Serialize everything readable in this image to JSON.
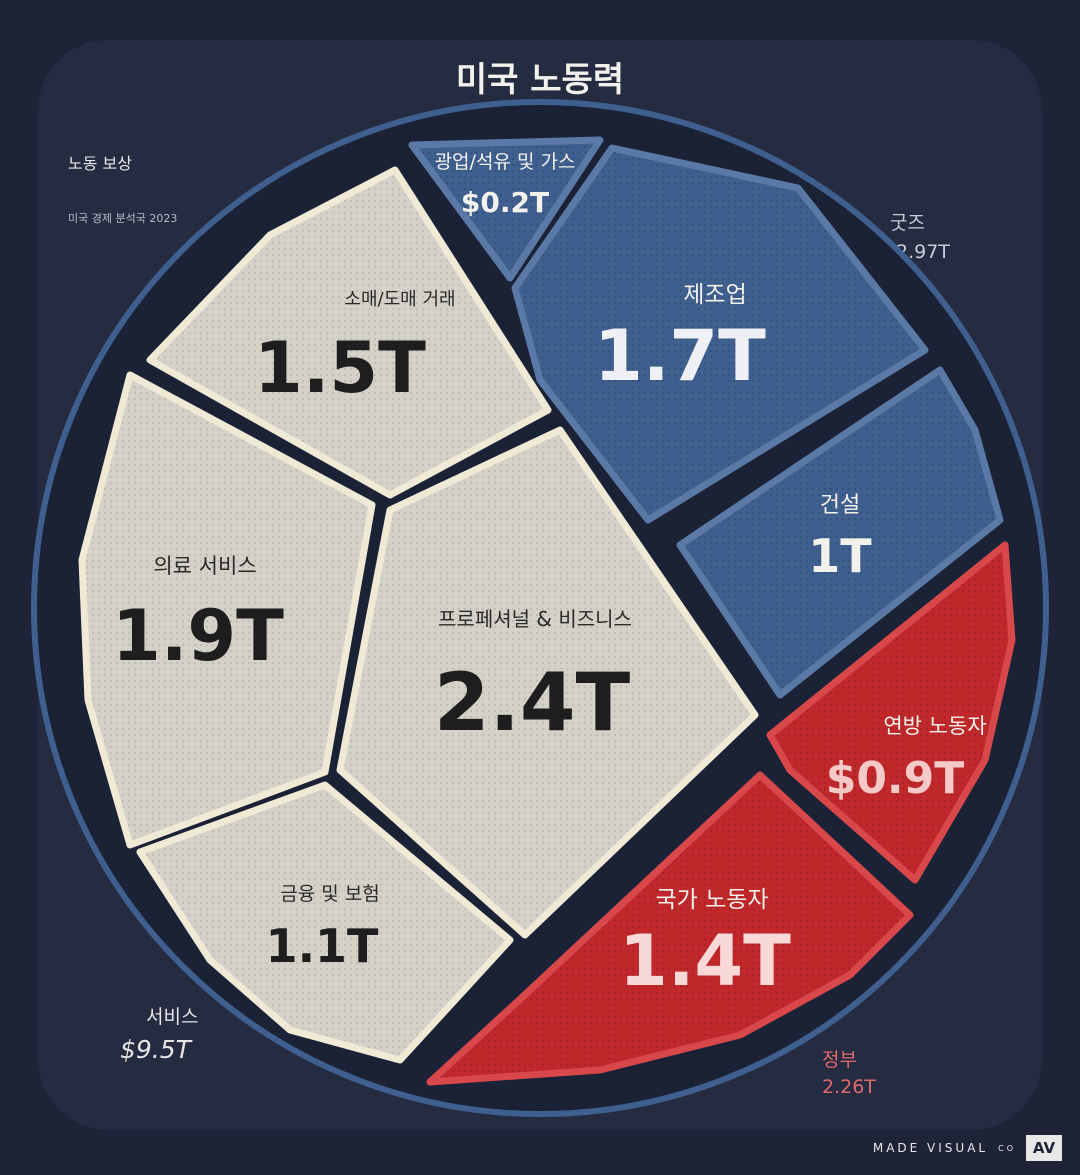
{
  "title": "미국 노동력",
  "subtitle": "노동 보상",
  "source": "미국 경제 분석국 2023",
  "groups": {
    "goods": {
      "label": "굿즈",
      "value": "2.97T"
    },
    "government": {
      "label": "정부",
      "value": "2.26T"
    },
    "services": {
      "label": "서비스",
      "value": "$9.5T"
    }
  },
  "brand": {
    "text": "MADE VISUAL",
    "suffix": "CO",
    "logo": "AV"
  },
  "colors": {
    "background": "#1e2337",
    "goods": "#3f5f8f",
    "government": "#c0282b",
    "services": "#d3d1c8"
  },
  "chart_data": {
    "type": "voronoi-treemap",
    "title": "미국 노동력",
    "unit": "trillion USD",
    "cells": [
      {
        "name": "광업/석유 및 가스",
        "group": "굿즈",
        "value": 0.2,
        "label": "$0.2T"
      },
      {
        "name": "제조업",
        "group": "굿즈",
        "value": 1.7,
        "label": "1.7T"
      },
      {
        "name": "건설",
        "group": "굿즈",
        "value": 1.0,
        "label": "1T"
      },
      {
        "name": "연방 노동자",
        "group": "정부",
        "value": 0.9,
        "label": "$0.9T"
      },
      {
        "name": "국가 노동자",
        "group": "정부",
        "value": 1.4,
        "label": "1.4T"
      },
      {
        "name": "소매/도매 거래",
        "group": "서비스",
        "value": 1.5,
        "label": "1.5T"
      },
      {
        "name": "의료 서비스",
        "group": "서비스",
        "value": 1.9,
        "label": "1.9T"
      },
      {
        "name": "프로페셔널 & 비즈니스",
        "group": "서비스",
        "value": 2.4,
        "label": "2.4T"
      },
      {
        "name": "금융 및 보험",
        "group": "서비스",
        "value": 1.1,
        "label": "1.1T"
      }
    ]
  }
}
